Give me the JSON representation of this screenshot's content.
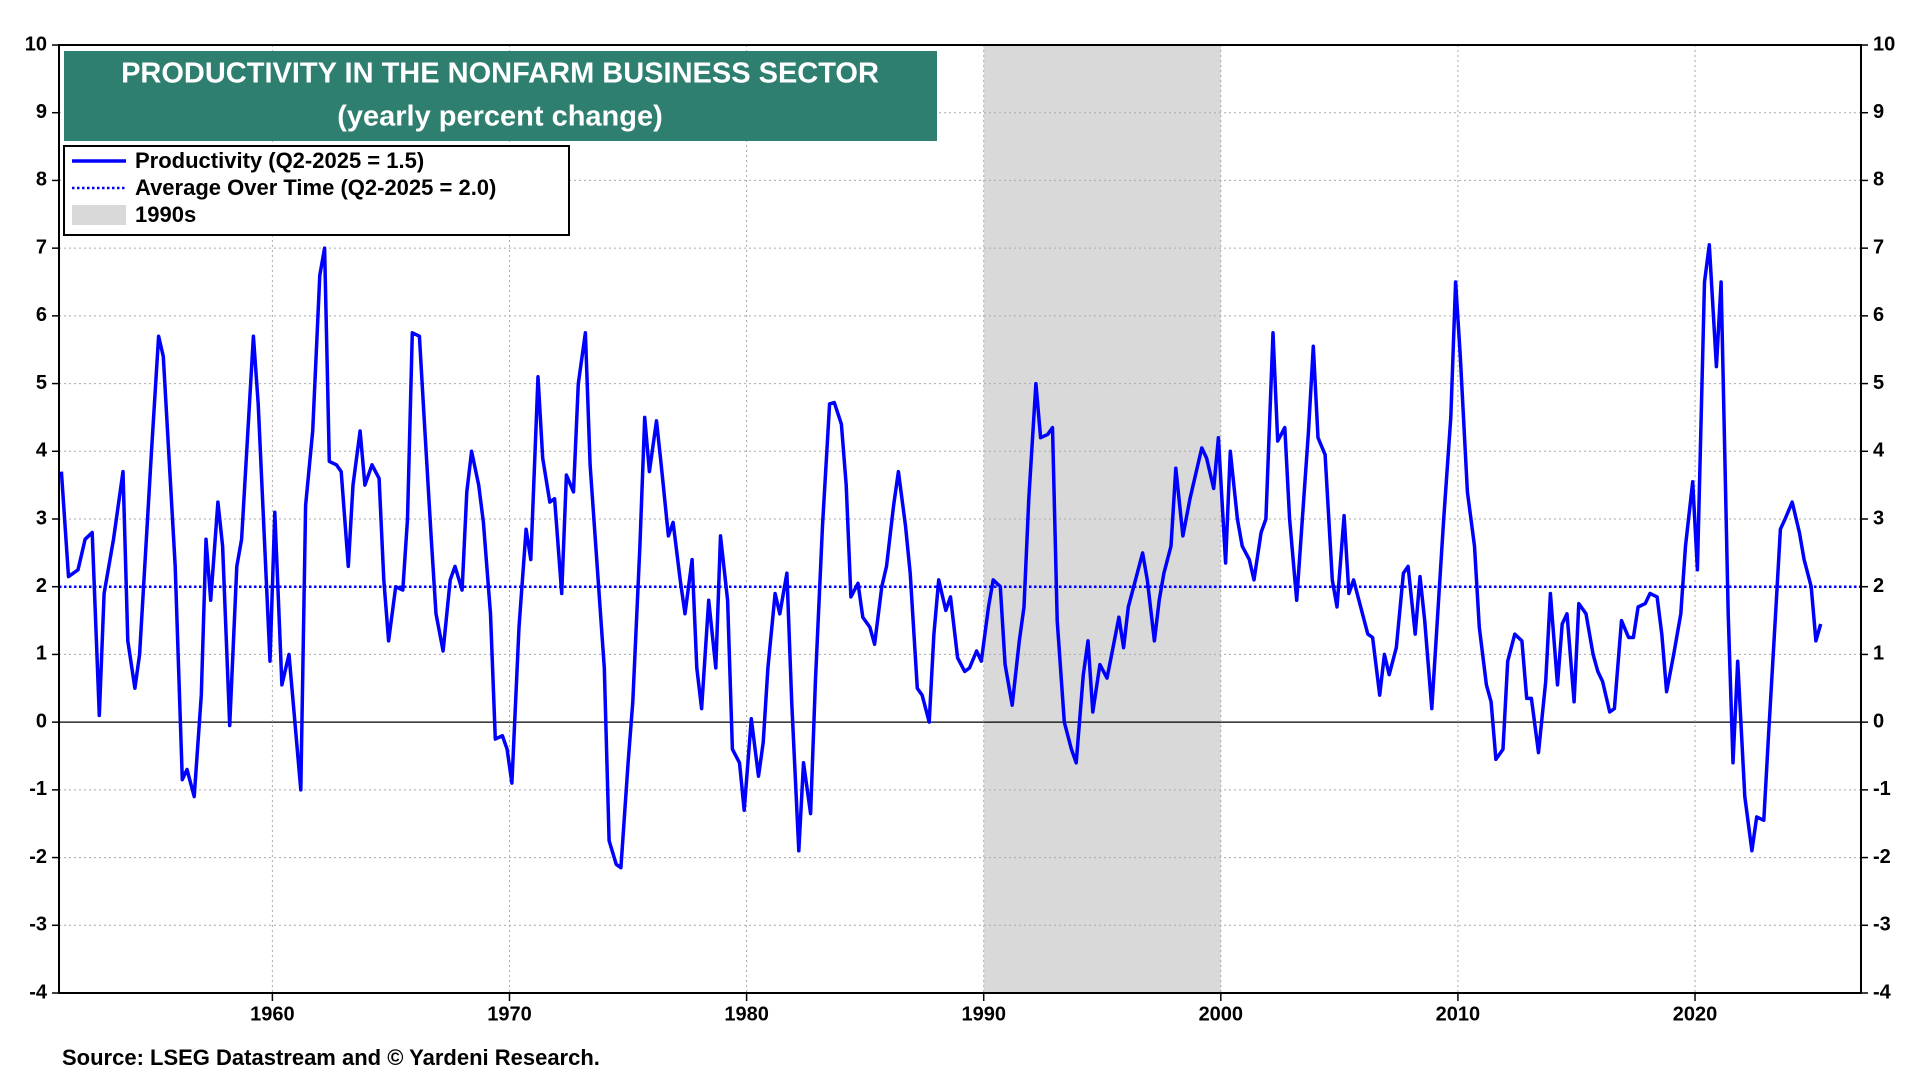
{
  "chart_data": {
    "type": "line",
    "title": "PRODUCTIVITY IN THE NONFARM BUSINESS SECTOR",
    "subtitle": "(yearly percent change)",
    "source": "Source: LSEG Datastream and © Yardeni Research.",
    "xlim": [
      1951,
      2027
    ],
    "xticks": [
      1960,
      1970,
      1980,
      1990,
      2000,
      2010,
      2020
    ],
    "ylim": [
      -4,
      10
    ],
    "yticks": [
      -4,
      -3,
      -2,
      -1,
      0,
      1,
      2,
      3,
      4,
      5,
      6,
      7,
      8,
      9,
      10
    ],
    "grid": true,
    "legend": "top-left",
    "shade": {
      "name": "1990s",
      "x": [
        1990,
        2000
      ],
      "color": "#d9d9d9"
    },
    "series": [
      {
        "name": "Productivity (Q2-2025 = 1.5)",
        "color": "#0000ff",
        "style": "solid",
        "x": [
          1951.1,
          1951.4,
          1951.8,
          1952.1,
          1952.4,
          1952.7,
          1952.9,
          1953.3,
          1953.7,
          1953.9,
          1954.2,
          1954.4,
          1954.9,
          1955.2,
          1955.4,
          1955.9,
          1956.2,
          1956.4,
          1956.7,
          1957.0,
          1957.2,
          1957.4,
          1957.7,
          1957.9,
          1958.2,
          1958.5,
          1958.7,
          1959.2,
          1959.4,
          1959.9,
          1960.1,
          1960.4,
          1960.7,
          1961.2,
          1961.4,
          1961.7,
          1962.0,
          1962.2,
          1962.4,
          1962.7,
          1962.9,
          1963.2,
          1963.4,
          1963.7,
          1963.9,
          1964.2,
          1964.5,
          1964.7,
          1964.9,
          1965.2,
          1965.5,
          1965.7,
          1965.9,
          1966.2,
          1966.4,
          1966.7,
          1966.9,
          1967.2,
          1967.5,
          1967.7,
          1968.0,
          1968.2,
          1968.4,
          1968.7,
          1968.9,
          1969.2,
          1969.4,
          1969.7,
          1969.9,
          1970.1,
          1970.4,
          1970.7,
          1970.9,
          1971.2,
          1971.4,
          1971.7,
          1971.9,
          1972.2,
          1972.4,
          1972.7,
          1972.9,
          1973.2,
          1973.4,
          1973.7,
          1974.0,
          1974.2,
          1974.5,
          1974.7,
          1975.0,
          1975.2,
          1975.5,
          1975.7,
          1975.9,
          1976.2,
          1976.4,
          1976.7,
          1976.9,
          1977.2,
          1977.4,
          1977.7,
          1977.9,
          1978.1,
          1978.4,
          1978.7,
          1978.9,
          1979.2,
          1979.4,
          1979.7,
          1979.9,
          1980.2,
          1980.5,
          1980.7,
          1980.9,
          1981.2,
          1981.4,
          1981.7,
          1981.9,
          1982.2,
          1982.4,
          1982.7,
          1982.9,
          1983.2,
          1983.5,
          1983.7,
          1984.0,
          1984.2,
          1984.4,
          1984.7,
          1984.9,
          1985.2,
          1985.4,
          1985.7,
          1985.9,
          1986.2,
          1986.4,
          1986.7,
          1986.9,
          1987.2,
          1987.4,
          1987.7,
          1987.9,
          1988.1,
          1988.4,
          1988.6,
          1988.9,
          1989.2,
          1989.4,
          1989.7,
          1989.9,
          1990.2,
          1990.4,
          1990.7,
          1990.9,
          1991.2,
          1991.5,
          1991.7,
          1991.9,
          1992.2,
          1992.4,
          1992.7,
          1992.9,
          1993.1,
          1993.4,
          1993.7,
          1993.9,
          1994.2,
          1994.4,
          1994.6,
          1994.9,
          1995.2,
          1995.4,
          1995.7,
          1995.9,
          1996.1,
          1996.4,
          1996.7,
          1996.9,
          1997.2,
          1997.4,
          1997.6,
          1997.9,
          1998.1,
          1998.4,
          1998.7,
          1998.9,
          1999.2,
          1999.4,
          1999.7,
          1999.9,
          2000.2,
          2000.4,
          2000.7,
          2000.9,
          2001.2,
          2001.4,
          2001.7,
          2001.9,
          2002.2,
          2002.4,
          2002.7,
          2002.9,
          2003.2,
          2003.4,
          2003.7,
          2003.9,
          2004.1,
          2004.4,
          2004.7,
          2004.9,
          2005.2,
          2005.4,
          2005.6,
          2005.9,
          2006.2,
          2006.4,
          2006.7,
          2006.9,
          2007.1,
          2007.4,
          2007.7,
          2007.9,
          2008.2,
          2008.4,
          2008.6,
          2008.9,
          2009.2,
          2009.4,
          2009.7,
          2009.9,
          2010.1,
          2010.4,
          2010.7,
          2010.9,
          2011.2,
          2011.4,
          2011.6,
          2011.9,
          2012.1,
          2012.4,
          2012.7,
          2012.9,
          2013.1,
          2013.4,
          2013.7,
          2013.9,
          2014.2,
          2014.4,
          2014.6,
          2014.9,
          2015.1,
          2015.4,
          2015.7,
          2015.9,
          2016.1,
          2016.4,
          2016.6,
          2016.9,
          2017.2,
          2017.4,
          2017.6,
          2017.9,
          2018.1,
          2018.4,
          2018.6,
          2018.8,
          2019.1,
          2019.4,
          2019.6,
          2019.9,
          2020.1,
          2020.4,
          2020.6,
          2020.9,
          2021.1,
          2021.4,
          2021.6,
          2021.8,
          2022.1,
          2022.4,
          2022.6,
          2022.9,
          2023.1,
          2023.4,
          2023.6,
          2023.8,
          2024.1,
          2024.4,
          2024.6,
          2024.9,
          2025.1,
          2025.3
        ],
        "values": [
          3.7,
          2.15,
          2.25,
          2.7,
          2.8,
          0.1,
          1.9,
          2.7,
          3.7,
          1.2,
          0.5,
          1.0,
          4.0,
          5.7,
          5.4,
          2.3,
          -0.85,
          -0.7,
          -1.1,
          0.4,
          2.7,
          1.8,
          3.25,
          2.6,
          -0.05,
          2.3,
          2.7,
          5.7,
          4.7,
          0.9,
          3.1,
          0.55,
          1.0,
          -1.0,
          3.2,
          4.3,
          6.6,
          7.0,
          3.85,
          3.8,
          3.7,
          2.3,
          3.5,
          4.3,
          3.5,
          3.8,
          3.6,
          2.1,
          1.2,
          2.0,
          1.95,
          3.0,
          5.75,
          5.7,
          4.5,
          2.7,
          1.6,
          1.05,
          2.1,
          2.3,
          1.95,
          3.4,
          4.0,
          3.5,
          2.95,
          1.6,
          -0.25,
          -0.2,
          -0.4,
          -0.9,
          1.4,
          2.85,
          2.4,
          5.1,
          3.9,
          3.25,
          3.3,
          1.9,
          3.65,
          3.4,
          5.0,
          5.75,
          3.8,
          2.3,
          0.8,
          -1.75,
          -2.1,
          -2.15,
          -0.6,
          0.3,
          2.6,
          4.5,
          3.7,
          4.45,
          3.8,
          2.75,
          2.95,
          2.1,
          1.6,
          2.4,
          0.8,
          0.2,
          1.8,
          0.8,
          2.75,
          1.8,
          -0.4,
          -0.6,
          -1.3,
          0.05,
          -0.8,
          -0.3,
          0.8,
          1.9,
          1.6,
          2.2,
          0.3,
          -1.9,
          -0.6,
          -1.35,
          0.6,
          2.9,
          4.7,
          4.72,
          4.4,
          3.5,
          1.85,
          2.05,
          1.55,
          1.4,
          1.15,
          2.0,
          2.3,
          3.2,
          3.7,
          2.9,
          2.2,
          0.5,
          0.4,
          0.0,
          1.3,
          2.1,
          1.65,
          1.85,
          0.95,
          0.75,
          0.8,
          1.05,
          0.9,
          1.7,
          2.1,
          2.0,
          0.85,
          0.25,
          1.2,
          1.7,
          3.3,
          5.0,
          4.2,
          4.25,
          4.35,
          1.5,
          0.0,
          -0.4,
          -0.6,
          0.7,
          1.2,
          0.15,
          0.85,
          0.65,
          1.0,
          1.55,
          1.1,
          1.7,
          2.1,
          2.5,
          2.1,
          1.2,
          1.8,
          2.2,
          2.6,
          3.75,
          2.75,
          3.3,
          3.6,
          4.05,
          3.9,
          3.45,
          4.2,
          2.35,
          4.0,
          3.0,
          2.6,
          2.4,
          2.1,
          2.8,
          3.0,
          5.75,
          4.15,
          4.35,
          3.0,
          1.8,
          2.8,
          4.3,
          5.55,
          4.2,
          3.95,
          2.1,
          1.7,
          3.05,
          1.9,
          2.1,
          1.7,
          1.3,
          1.25,
          0.4,
          1.0,
          0.7,
          1.1,
          2.2,
          2.3,
          1.3,
          2.15,
          1.5,
          0.2,
          1.9,
          3.0,
          4.5,
          6.5,
          5.4,
          3.4,
          2.6,
          1.4,
          0.55,
          0.3,
          -0.55,
          -0.4,
          0.9,
          1.3,
          1.2,
          0.35,
          0.35,
          -0.45,
          0.6,
          1.9,
          0.55,
          1.45,
          1.6,
          0.3,
          1.75,
          1.6,
          1.0,
          0.75,
          0.6,
          0.15,
          0.2,
          1.5,
          1.25,
          1.25,
          1.7,
          1.75,
          1.9,
          1.85,
          1.3,
          0.45,
          1.0,
          1.6,
          2.6,
          3.55,
          2.25,
          6.5,
          7.05,
          5.25,
          6.5,
          1.6,
          -0.6,
          0.9,
          -1.1,
          -1.9,
          -1.4,
          -1.45,
          -0.2,
          1.6,
          2.85,
          3.0,
          3.25,
          2.8,
          2.4,
          2.0,
          1.2,
          1.45
        ]
      },
      {
        "name": "Average Over Time (Q2-2025 = 2.0)",
        "color": "#0000ff",
        "style": "dotted",
        "x": [
          1951,
          2027
        ],
        "values": [
          2.0,
          2.0
        ]
      }
    ]
  }
}
